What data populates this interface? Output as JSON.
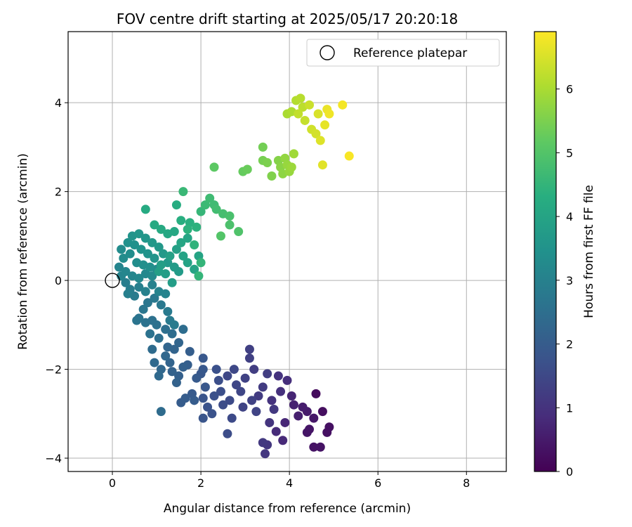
{
  "chart_data": {
    "type": "scatter",
    "title": "FOV centre drift starting at 2025/05/17 20:20:18",
    "xlabel": "Angular distance from reference (arcmin)",
    "ylabel": "Rotation from reference (arcmin)",
    "xlim": [
      -1.0,
      8.9
    ],
    "ylim": [
      -4.3,
      5.6
    ],
    "xticks": [
      0,
      2,
      4,
      6,
      8
    ],
    "yticks": [
      -4,
      -2,
      0,
      2,
      4
    ],
    "grid": true,
    "legend": {
      "placement": "top-right",
      "entries": [
        {
          "label": "Reference platepar",
          "marker": "open-circle"
        }
      ]
    },
    "reference_point": {
      "x": 0,
      "y": 0
    },
    "colorbar": {
      "label": "Hours from first FF file",
      "min": 0,
      "max": 6.9,
      "ticks": [
        0,
        1,
        2,
        3,
        4,
        5,
        6
      ],
      "colormap": "viridis"
    },
    "series": [
      {
        "points": [
          {
            "x": 4.6,
            "y": -2.55,
            "c": 0.2
          },
          {
            "x": 4.75,
            "y": -2.95,
            "c": 0.25
          },
          {
            "x": 4.9,
            "y": -3.3,
            "c": 0.3
          },
          {
            "x": 4.85,
            "y": -3.42,
            "c": 0.3
          },
          {
            "x": 4.55,
            "y": -3.75,
            "c": 0.35
          },
          {
            "x": 4.7,
            "y": -3.75,
            "c": 0.35
          },
          {
            "x": 4.4,
            "y": -3.42,
            "c": 0.4
          },
          {
            "x": 4.45,
            "y": -3.35,
            "c": 0.4
          },
          {
            "x": 4.55,
            "y": -3.1,
            "c": 0.45
          },
          {
            "x": 4.4,
            "y": -2.95,
            "c": 0.5
          },
          {
            "x": 4.3,
            "y": -2.85,
            "c": 0.55
          },
          {
            "x": 4.2,
            "y": -3.05,
            "c": 0.6
          },
          {
            "x": 4.1,
            "y": -2.8,
            "c": 0.65
          },
          {
            "x": 4.05,
            "y": -2.6,
            "c": 0.7
          },
          {
            "x": 3.9,
            "y": -3.2,
            "c": 0.75
          },
          {
            "x": 3.85,
            "y": -3.6,
            "c": 0.8
          },
          {
            "x": 3.7,
            "y": -3.4,
            "c": 0.85
          },
          {
            "x": 3.95,
            "y": -2.25,
            "c": 0.9
          },
          {
            "x": 3.8,
            "y": -2.5,
            "c": 0.95
          },
          {
            "x": 3.75,
            "y": -2.15,
            "c": 1.0
          },
          {
            "x": 3.6,
            "y": -2.7,
            "c": 1.0
          },
          {
            "x": 3.55,
            "y": -3.2,
            "c": 1.05
          },
          {
            "x": 3.5,
            "y": -3.7,
            "c": 1.1
          },
          {
            "x": 3.45,
            "y": -3.9,
            "c": 1.1
          },
          {
            "x": 3.4,
            "y": -3.65,
            "c": 1.15
          },
          {
            "x": 3.65,
            "y": -2.9,
            "c": 1.15
          },
          {
            "x": 3.4,
            "y": -2.4,
            "c": 1.2
          },
          {
            "x": 3.3,
            "y": -2.6,
            "c": 1.2
          },
          {
            "x": 3.5,
            "y": -2.1,
            "c": 1.25
          },
          {
            "x": 3.2,
            "y": -2.0,
            "c": 1.25
          },
          {
            "x": 3.1,
            "y": -1.55,
            "c": 1.3
          },
          {
            "x": 3.1,
            "y": -1.75,
            "c": 1.3
          },
          {
            "x": 3.0,
            "y": -2.2,
            "c": 1.35
          },
          {
            "x": 3.15,
            "y": -2.7,
            "c": 1.35
          },
          {
            "x": 3.25,
            "y": -2.95,
            "c": 1.4
          },
          {
            "x": 2.95,
            "y": -2.85,
            "c": 1.4
          },
          {
            "x": 2.9,
            "y": -2.5,
            "c": 1.45
          },
          {
            "x": 2.8,
            "y": -2.35,
            "c": 1.45
          },
          {
            "x": 2.75,
            "y": -2.0,
            "c": 1.5
          },
          {
            "x": 2.6,
            "y": -2.15,
            "c": 1.5
          },
          {
            "x": 2.65,
            "y": -2.7,
            "c": 1.55
          },
          {
            "x": 2.7,
            "y": -3.1,
            "c": 1.55
          },
          {
            "x": 2.6,
            "y": -3.45,
            "c": 1.6
          },
          {
            "x": 2.5,
            "y": -2.8,
            "c": 1.6
          },
          {
            "x": 2.45,
            "y": -2.5,
            "c": 1.65
          },
          {
            "x": 2.4,
            "y": -2.25,
            "c": 1.65
          },
          {
            "x": 2.35,
            "y": -2.0,
            "c": 1.7
          },
          {
            "x": 2.3,
            "y": -2.6,
            "c": 1.7
          },
          {
            "x": 2.25,
            "y": -3.0,
            "c": 1.75
          },
          {
            "x": 2.15,
            "y": -2.85,
            "c": 1.75
          },
          {
            "x": 2.05,
            "y": -3.1,
            "c": 1.8
          },
          {
            "x": 2.05,
            "y": -2.65,
            "c": 1.8
          },
          {
            "x": 2.1,
            "y": -2.4,
            "c": 1.85
          },
          {
            "x": 2.0,
            "y": -2.1,
            "c": 1.85
          },
          {
            "x": 2.05,
            "y": -1.75,
            "c": 1.9
          },
          {
            "x": 2.05,
            "y": -2.0,
            "c": 1.9
          },
          {
            "x": 1.9,
            "y": -2.2,
            "c": 1.95
          },
          {
            "x": 1.8,
            "y": -2.55,
            "c": 1.95
          },
          {
            "x": 1.65,
            "y": -2.65,
            "c": 2.0
          },
          {
            "x": 1.55,
            "y": -2.75,
            "c": 2.0
          },
          {
            "x": 1.85,
            "y": -2.7,
            "c": 2.0
          },
          {
            "x": 1.75,
            "y": -1.6,
            "c": 2.05
          },
          {
            "x": 1.7,
            "y": -1.9,
            "c": 2.05
          },
          {
            "x": 1.6,
            "y": -1.95,
            "c": 2.1
          },
          {
            "x": 1.5,
            "y": -2.15,
            "c": 2.1
          },
          {
            "x": 1.45,
            "y": -2.3,
            "c": 2.15
          },
          {
            "x": 1.35,
            "y": -2.05,
            "c": 2.15
          },
          {
            "x": 1.3,
            "y": -1.85,
            "c": 2.2
          },
          {
            "x": 1.4,
            "y": -1.55,
            "c": 2.2
          },
          {
            "x": 1.5,
            "y": -1.4,
            "c": 2.25
          },
          {
            "x": 1.25,
            "y": -1.5,
            "c": 2.25
          },
          {
            "x": 1.2,
            "y": -1.7,
            "c": 2.3
          },
          {
            "x": 1.1,
            "y": -2.0,
            "c": 2.3
          },
          {
            "x": 1.05,
            "y": -2.15,
            "c": 2.35
          },
          {
            "x": 0.95,
            "y": -1.85,
            "c": 2.35
          },
          {
            "x": 0.9,
            "y": -1.55,
            "c": 2.4
          },
          {
            "x": 1.1,
            "y": -2.95,
            "c": 2.4
          },
          {
            "x": 1.6,
            "y": -1.1,
            "c": 2.45
          },
          {
            "x": 1.35,
            "y": -1.2,
            "c": 2.45
          },
          {
            "x": 1.2,
            "y": -1.1,
            "c": 2.5
          },
          {
            "x": 1.05,
            "y": -1.3,
            "c": 2.5
          },
          {
            "x": 1.0,
            "y": -1.0,
            "c": 2.55
          },
          {
            "x": 0.9,
            "y": -0.9,
            "c": 2.55
          },
          {
            "x": 0.85,
            "y": -1.2,
            "c": 2.6
          },
          {
            "x": 0.75,
            "y": -0.95,
            "c": 2.6
          },
          {
            "x": 0.6,
            "y": -0.85,
            "c": 2.65
          },
          {
            "x": 0.55,
            "y": -0.9,
            "c": 2.65
          },
          {
            "x": 0.7,
            "y": -0.65,
            "c": 2.7
          },
          {
            "x": 0.8,
            "y": -0.5,
            "c": 2.7
          },
          {
            "x": 0.95,
            "y": -0.4,
            "c": 2.75
          },
          {
            "x": 1.1,
            "y": -0.55,
            "c": 2.75
          },
          {
            "x": 1.25,
            "y": -0.7,
            "c": 2.8
          },
          {
            "x": 1.3,
            "y": -0.9,
            "c": 2.8
          },
          {
            "x": 1.4,
            "y": -1.0,
            "c": 2.85
          },
          {
            "x": 0.5,
            "y": -0.35,
            "c": 2.85
          },
          {
            "x": 0.4,
            "y": -0.2,
            "c": 2.9
          },
          {
            "x": 0.3,
            "y": -0.05,
            "c": 2.9
          },
          {
            "x": 0.35,
            "y": -0.3,
            "c": 2.95
          },
          {
            "x": 0.6,
            "y": -0.15,
            "c": 2.95
          },
          {
            "x": 0.75,
            "y": -0.25,
            "c": 3.0
          },
          {
            "x": 0.9,
            "y": -0.1,
            "c": 3.0
          },
          {
            "x": 1.05,
            "y": -0.25,
            "c": 3.05
          },
          {
            "x": 1.2,
            "y": -0.3,
            "c": 3.05
          },
          {
            "x": 0.2,
            "y": 0.1,
            "c": 3.1
          },
          {
            "x": 0.15,
            "y": 0.3,
            "c": 3.1
          },
          {
            "x": 0.3,
            "y": 0.2,
            "c": 3.15
          },
          {
            "x": 0.45,
            "y": 0.1,
            "c": 3.15
          },
          {
            "x": 0.6,
            "y": 0.05,
            "c": 3.2
          },
          {
            "x": 0.75,
            "y": 0.15,
            "c": 3.2
          },
          {
            "x": 0.9,
            "y": 0.1,
            "c": 3.25
          },
          {
            "x": 1.0,
            "y": 0.25,
            "c": 3.25
          },
          {
            "x": 0.25,
            "y": 0.5,
            "c": 3.3
          },
          {
            "x": 0.2,
            "y": 0.7,
            "c": 3.3
          },
          {
            "x": 0.4,
            "y": 0.6,
            "c": 3.35
          },
          {
            "x": 0.55,
            "y": 0.4,
            "c": 3.35
          },
          {
            "x": 0.7,
            "y": 0.35,
            "c": 3.4
          },
          {
            "x": 0.85,
            "y": 0.3,
            "c": 3.4
          },
          {
            "x": 0.35,
            "y": 0.85,
            "c": 3.45
          },
          {
            "x": 0.5,
            "y": 0.8,
            "c": 3.45
          },
          {
            "x": 0.65,
            "y": 0.7,
            "c": 3.5
          },
          {
            "x": 0.8,
            "y": 0.6,
            "c": 3.5
          },
          {
            "x": 0.95,
            "y": 0.5,
            "c": 3.55
          },
          {
            "x": 0.45,
            "y": 1.0,
            "c": 3.55
          },
          {
            "x": 0.6,
            "y": 1.05,
            "c": 3.6
          },
          {
            "x": 0.75,
            "y": 0.95,
            "c": 3.6
          },
          {
            "x": 0.9,
            "y": 0.85,
            "c": 3.65
          },
          {
            "x": 1.05,
            "y": 0.75,
            "c": 3.65
          },
          {
            "x": 1.15,
            "y": 0.6,
            "c": 3.7
          },
          {
            "x": 1.25,
            "y": 0.4,
            "c": 3.7
          },
          {
            "x": 1.4,
            "y": 0.3,
            "c": 3.75
          },
          {
            "x": 1.5,
            "y": 0.2,
            "c": 3.75
          },
          {
            "x": 1.35,
            "y": -0.05,
            "c": 3.8
          },
          {
            "x": 1.2,
            "y": 0.15,
            "c": 3.8
          },
          {
            "x": 1.1,
            "y": 0.35,
            "c": 3.85
          },
          {
            "x": 1.05,
            "y": 0.2,
            "c": 3.85
          },
          {
            "x": 1.3,
            "y": 0.55,
            "c": 3.9
          },
          {
            "x": 1.45,
            "y": 0.7,
            "c": 3.9
          },
          {
            "x": 1.6,
            "y": 0.55,
            "c": 3.95
          },
          {
            "x": 1.7,
            "y": 0.4,
            "c": 3.95
          },
          {
            "x": 1.85,
            "y": 0.25,
            "c": 4.0
          },
          {
            "x": 1.95,
            "y": 0.55,
            "c": 4.0
          },
          {
            "x": 1.55,
            "y": 0.85,
            "c": 4.05
          },
          {
            "x": 1.7,
            "y": 0.95,
            "c": 4.05
          },
          {
            "x": 1.4,
            "y": 1.1,
            "c": 4.1
          },
          {
            "x": 1.25,
            "y": 1.05,
            "c": 4.1
          },
          {
            "x": 1.1,
            "y": 1.15,
            "c": 4.15
          },
          {
            "x": 0.95,
            "y": 1.25,
            "c": 4.15
          },
          {
            "x": 0.75,
            "y": 1.6,
            "c": 4.2
          },
          {
            "x": 1.45,
            "y": 1.7,
            "c": 4.25
          },
          {
            "x": 1.55,
            "y": 1.35,
            "c": 4.3
          },
          {
            "x": 1.75,
            "y": 1.3,
            "c": 4.35
          },
          {
            "x": 1.9,
            "y": 1.2,
            "c": 4.4
          },
          {
            "x": 1.7,
            "y": 1.15,
            "c": 4.4
          },
          {
            "x": 1.85,
            "y": 0.8,
            "c": 4.45
          },
          {
            "x": 2.0,
            "y": 0.4,
            "c": 4.5
          },
          {
            "x": 1.95,
            "y": 0.1,
            "c": 4.5
          },
          {
            "x": 2.0,
            "y": 1.55,
            "c": 4.55
          },
          {
            "x": 1.6,
            "y": 2.0,
            "c": 4.6
          },
          {
            "x": 2.1,
            "y": 1.7,
            "c": 4.65
          },
          {
            "x": 2.2,
            "y": 1.85,
            "c": 4.7
          },
          {
            "x": 2.3,
            "y": 1.7,
            "c": 4.7
          },
          {
            "x": 2.35,
            "y": 1.6,
            "c": 4.75
          },
          {
            "x": 2.5,
            "y": 1.5,
            "c": 4.8
          },
          {
            "x": 2.65,
            "y": 1.45,
            "c": 4.85
          },
          {
            "x": 2.65,
            "y": 1.25,
            "c": 4.9
          },
          {
            "x": 2.85,
            "y": 1.1,
            "c": 4.95
          },
          {
            "x": 2.45,
            "y": 1.0,
            "c": 5.0
          },
          {
            "x": 2.3,
            "y": 2.55,
            "c": 5.15
          },
          {
            "x": 2.95,
            "y": 2.45,
            "c": 5.25
          },
          {
            "x": 3.05,
            "y": 2.5,
            "c": 5.3
          },
          {
            "x": 3.4,
            "y": 3.0,
            "c": 5.4
          },
          {
            "x": 3.4,
            "y": 2.7,
            "c": 5.45
          },
          {
            "x": 3.5,
            "y": 2.65,
            "c": 5.5
          },
          {
            "x": 3.6,
            "y": 2.35,
            "c": 5.55
          },
          {
            "x": 3.75,
            "y": 2.7,
            "c": 5.6
          },
          {
            "x": 3.8,
            "y": 2.55,
            "c": 5.65
          },
          {
            "x": 3.85,
            "y": 2.4,
            "c": 5.7
          },
          {
            "x": 3.9,
            "y": 2.75,
            "c": 5.75
          },
          {
            "x": 3.95,
            "y": 2.6,
            "c": 5.8
          },
          {
            "x": 4.0,
            "y": 2.45,
            "c": 5.8
          },
          {
            "x": 4.05,
            "y": 2.55,
            "c": 5.85
          },
          {
            "x": 4.1,
            "y": 2.85,
            "c": 5.9
          },
          {
            "x": 3.95,
            "y": 3.75,
            "c": 6.0
          },
          {
            "x": 4.05,
            "y": 3.8,
            "c": 6.05
          },
          {
            "x": 4.15,
            "y": 4.05,
            "c": 6.1
          },
          {
            "x": 4.25,
            "y": 4.1,
            "c": 6.15
          },
          {
            "x": 4.3,
            "y": 3.9,
            "c": 6.2
          },
          {
            "x": 4.2,
            "y": 3.75,
            "c": 6.25
          },
          {
            "x": 4.35,
            "y": 3.6,
            "c": 6.3
          },
          {
            "x": 4.45,
            "y": 3.95,
            "c": 6.35
          },
          {
            "x": 4.5,
            "y": 3.4,
            "c": 6.4
          },
          {
            "x": 4.6,
            "y": 3.3,
            "c": 6.45
          },
          {
            "x": 4.65,
            "y": 3.75,
            "c": 6.5
          },
          {
            "x": 4.7,
            "y": 3.15,
            "c": 6.55
          },
          {
            "x": 4.75,
            "y": 2.6,
            "c": 6.6
          },
          {
            "x": 4.8,
            "y": 3.5,
            "c": 6.65
          },
          {
            "x": 4.85,
            "y": 3.85,
            "c": 6.7
          },
          {
            "x": 4.9,
            "y": 3.75,
            "c": 6.75
          },
          {
            "x": 5.2,
            "y": 3.95,
            "c": 6.8
          },
          {
            "x": 5.35,
            "y": 2.8,
            "c": 6.85
          }
        ]
      }
    ]
  }
}
